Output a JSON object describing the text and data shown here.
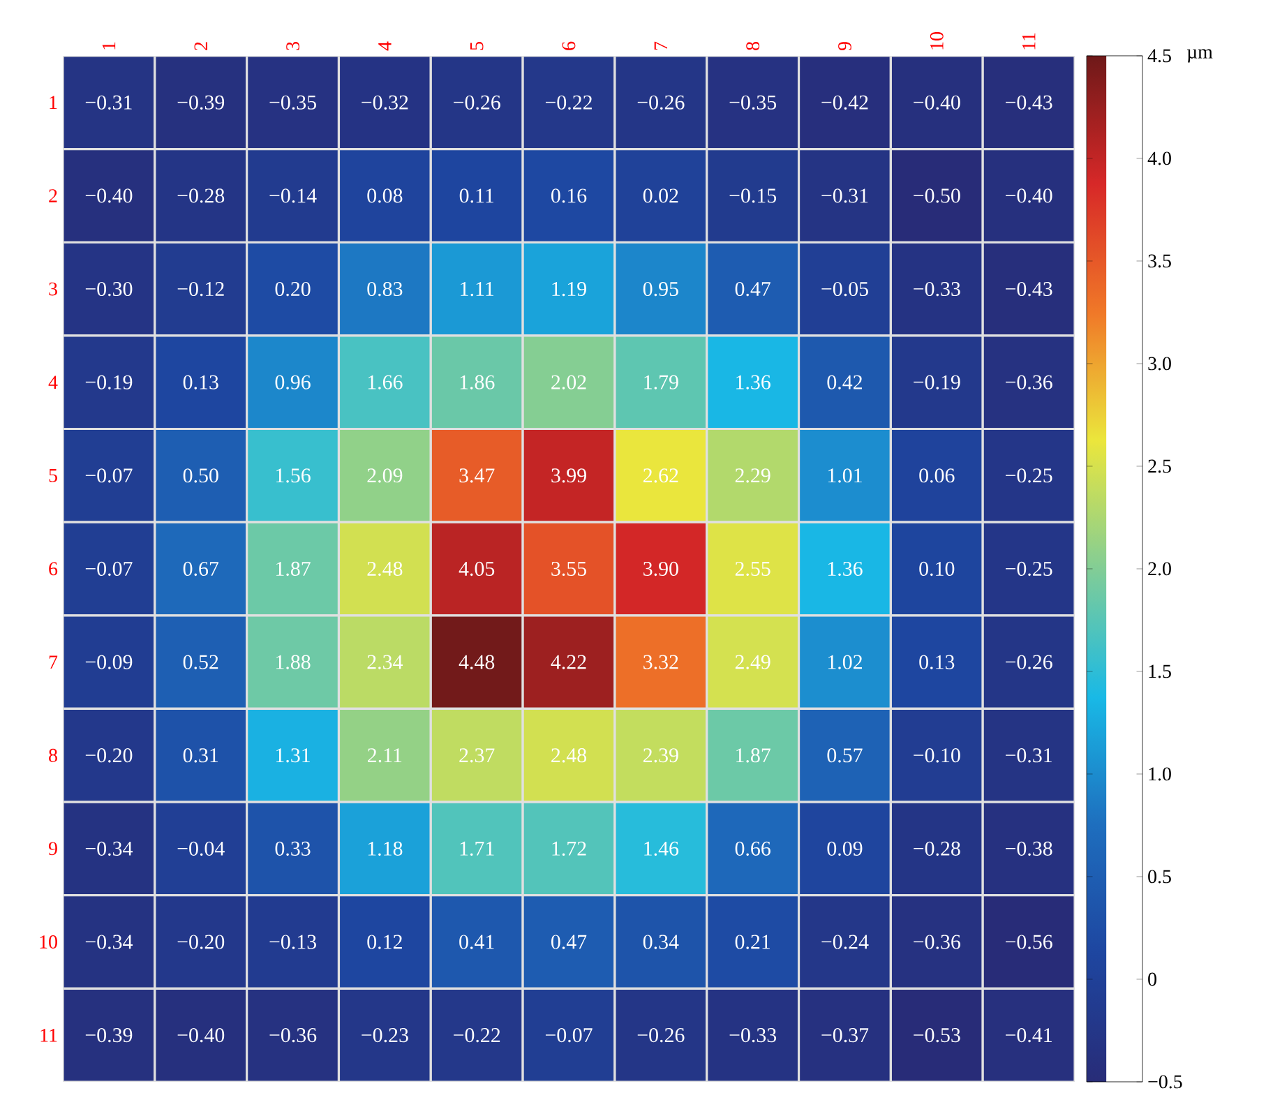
{
  "chart_data": {
    "type": "heatmap",
    "categories": [
      "1",
      "2",
      "3",
      "4",
      "5",
      "6",
      "7",
      "8",
      "9",
      "10",
      "11"
    ],
    "y_categories": [
      "1",
      "2",
      "3",
      "4",
      "5",
      "6",
      "7",
      "8",
      "9",
      "10",
      "11"
    ],
    "cells": [
      [
        -0.31,
        -0.39,
        -0.35,
        -0.32,
        -0.26,
        -0.22,
        -0.26,
        -0.35,
        -0.42,
        -0.4,
        -0.43
      ],
      [
        -0.4,
        -0.28,
        -0.14,
        0.08,
        0.11,
        0.16,
        0.02,
        -0.15,
        -0.31,
        -0.5,
        -0.4
      ],
      [
        -0.3,
        -0.12,
        0.2,
        0.83,
        1.11,
        1.19,
        0.95,
        0.47,
        -0.05,
        -0.33,
        -0.43
      ],
      [
        -0.19,
        0.13,
        0.96,
        1.66,
        1.86,
        2.02,
        1.79,
        1.36,
        0.42,
        -0.19,
        -0.36
      ],
      [
        -0.07,
        0.5,
        1.56,
        2.09,
        3.47,
        3.99,
        2.62,
        2.29,
        1.01,
        0.06,
        -0.25
      ],
      [
        -0.07,
        0.67,
        1.87,
        2.48,
        4.05,
        3.55,
        3.9,
        2.55,
        1.36,
        0.1,
        -0.25
      ],
      [
        -0.09,
        0.52,
        1.88,
        2.34,
        4.48,
        4.22,
        3.32,
        2.49,
        1.02,
        0.13,
        -0.26
      ],
      [
        -0.2,
        0.31,
        1.31,
        2.11,
        2.37,
        2.48,
        2.39,
        1.87,
        0.57,
        -0.1,
        -0.31
      ],
      [
        -0.34,
        -0.04,
        0.33,
        1.18,
        1.71,
        1.72,
        1.46,
        0.66,
        0.09,
        -0.28,
        -0.38
      ],
      [
        -0.34,
        -0.2,
        -0.13,
        0.12,
        0.41,
        0.47,
        0.34,
        0.21,
        -0.24,
        -0.36,
        -0.56
      ],
      [
        -0.39,
        -0.4,
        -0.36,
        -0.23,
        -0.22,
        -0.07,
        -0.26,
        -0.33,
        -0.37,
        -0.53,
        -0.41
      ]
    ],
    "cell_labels": [
      [
        "−0.31",
        "−0.39",
        "−0.35",
        "−0.32",
        "−0.26",
        "−0.22",
        "−0.26",
        "−0.35",
        "−0.42",
        "−0.40",
        "−0.43"
      ],
      [
        "−0.40",
        "−0.28",
        "−0.14",
        "0.08",
        "0.11",
        "0.16",
        "0.02",
        "−0.15",
        "−0.31",
        "−0.50",
        "−0.40"
      ],
      [
        "−0.30",
        "−0.12",
        "0.20",
        "0.83",
        "1.11",
        "1.19",
        "0.95",
        "0.47",
        "−0.05",
        "−0.33",
        "−0.43"
      ],
      [
        "−0.19",
        "0.13",
        "0.96",
        "1.66",
        "1.86",
        "2.02",
        "1.79",
        "1.36",
        "0.42",
        "−0.19",
        "−0.36"
      ],
      [
        "−0.07",
        "0.50",
        "1.56",
        "2.09",
        "3.47",
        "3.99",
        "2.62",
        "2.29",
        "1.01",
        "0.06",
        "−0.25"
      ],
      [
        "−0.07",
        "0.67",
        "1.87",
        "2.48",
        "4.05",
        "3.55",
        "3.90",
        "2.55",
        "1.36",
        "0.10",
        "−0.25"
      ],
      [
        "−0.09",
        "0.52",
        "1.88",
        "2.34",
        "4.48",
        "4.22",
        "3.32",
        "2.49",
        "1.02",
        "0.13",
        "−0.26"
      ],
      [
        "−0.20",
        "0.31",
        "1.31",
        "2.11",
        "2.37",
        "2.48",
        "2.39",
        "1.87",
        "0.57",
        "−0.10",
        "−0.31"
      ],
      [
        "−0.34",
        "−0.04",
        "0.33",
        "1.18",
        "1.71",
        "1.72",
        "1.46",
        "0.66",
        "0.09",
        "−0.28",
        "−0.38"
      ],
      [
        "−0.34",
        "−0.20",
        "−0.13",
        "0.12",
        "0.41",
        "0.47",
        "0.34",
        "0.21",
        "−0.24",
        "−0.36",
        "−0.56"
      ],
      [
        "−0.39",
        "−0.40",
        "−0.36",
        "−0.23",
        "−0.22",
        "−0.07",
        "−0.26",
        "−0.33",
        "−0.37",
        "−0.53",
        "−0.41"
      ]
    ],
    "data_labels": true,
    "clabel": "µm",
    "clim": [
      -0.5,
      4.5
    ],
    "cticks": [
      {
        "value": -0.5,
        "label": "−0.5"
      },
      0,
      0.5,
      {
        "value": 1.0,
        "label": "1.0"
      },
      {
        "value": 1.5,
        "label": "1.5"
      },
      {
        "value": 2.0,
        "label": "2.0"
      },
      {
        "value": 2.5,
        "label": "2.5"
      },
      {
        "value": 3.0,
        "label": "3.0"
      },
      {
        "value": 3.5,
        "label": "3.5"
      },
      {
        "value": 4.0,
        "label": "4.0"
      },
      {
        "value": 4.5,
        "label": "4.5"
      }
    ]
  }
}
